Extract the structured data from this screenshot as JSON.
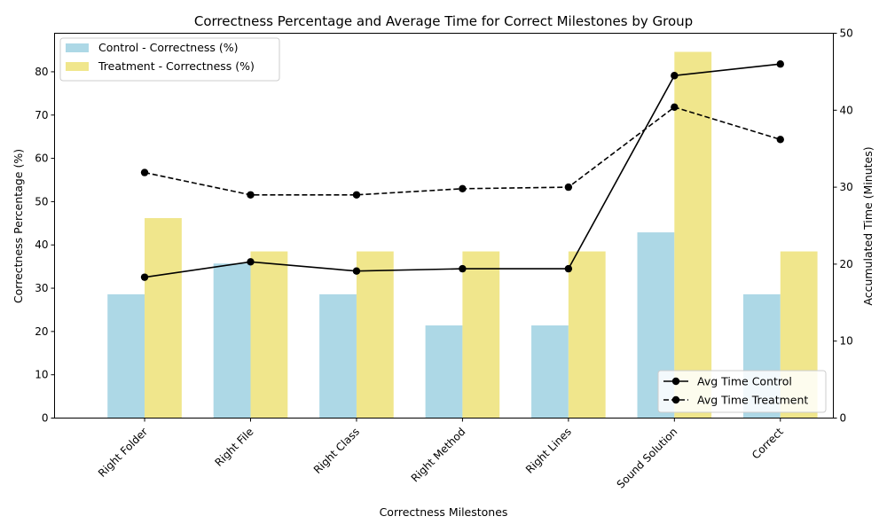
{
  "chart_data": {
    "type": "bar",
    "title": "Correctness Percentage and Average Time for Correct Milestones by Group",
    "xlabel": "Correctness Milestones",
    "ylabel": "Correctness Percentage (%)",
    "y2label": "Accumulated Time (Minutes)",
    "categories": [
      "Right Folder",
      "Right File",
      "Right Class",
      "Right Method",
      "Right Lines",
      "Sound Solution",
      "Correct"
    ],
    "ylim": [
      0,
      88.9
    ],
    "yticks": [
      0,
      10,
      20,
      30,
      40,
      50,
      60,
      70,
      80
    ],
    "y2lim": [
      0,
      50
    ],
    "y2ticks": [
      0,
      10,
      20,
      30,
      40,
      50
    ],
    "series": [
      {
        "name": "Control - Correctness (%)",
        "kind": "bar",
        "axis": "left",
        "color": "#add8e6",
        "values": [
          28.6,
          35.7,
          28.6,
          21.4,
          21.4,
          42.9,
          28.6
        ]
      },
      {
        "name": "Treatment - Correctness (%)",
        "kind": "bar",
        "axis": "left",
        "color": "#f0e68c",
        "values": [
          46.2,
          38.5,
          38.5,
          38.5,
          38.5,
          84.6,
          38.5
        ]
      },
      {
        "name": "Avg Time Control",
        "kind": "line",
        "axis": "right",
        "style": "solid",
        "color": "#000000",
        "values": [
          18.3,
          20.3,
          19.1,
          19.4,
          19.4,
          44.5,
          46.0
        ]
      },
      {
        "name": "Avg Time Treatment",
        "kind": "line",
        "axis": "right",
        "style": "dashed",
        "color": "#000000",
        "values": [
          31.9,
          29.0,
          29.0,
          29.8,
          30.0,
          40.4,
          36.2
        ]
      }
    ],
    "bar_legend_position": "upper left",
    "line_legend_position": "lower right",
    "grid": false
  }
}
